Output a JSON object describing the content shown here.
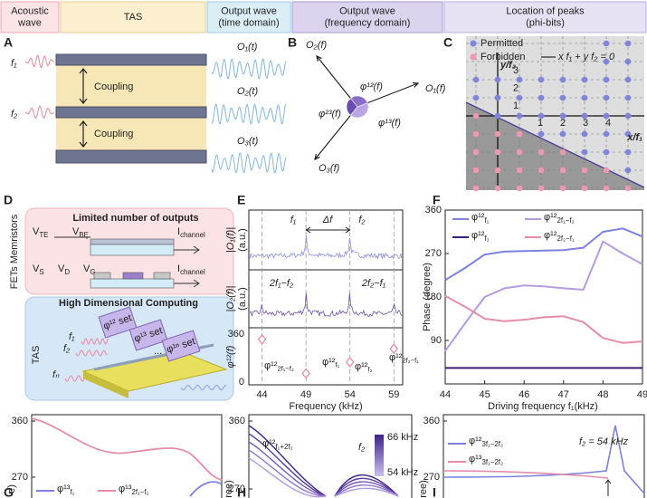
{
  "header": {
    "cells": [
      [
        "Acoustic",
        "wave"
      ],
      [
        "TAS"
      ],
      [
        "Output wave",
        "(time domain)"
      ],
      [
        "Output wave",
        "(frequency domain)"
      ],
      [
        "Location of peaks",
        "(phi-bits)"
      ]
    ]
  },
  "panels": {
    "A": {
      "label": "A",
      "inputs": [
        "f₁",
        "f₂"
      ],
      "coupling": [
        "Coupling",
        "Coupling"
      ],
      "outputs": [
        "O₁(t)",
        "O₂(t)",
        "O₃(t)"
      ]
    },
    "B": {
      "label": "B",
      "axes": [
        "O₂(f)",
        "O₁(f)",
        "O₃(f)"
      ],
      "phases": [
        "φ¹²(f)",
        "φ²³(f)",
        "φ¹³(f)"
      ]
    },
    "C": {
      "label": "C",
      "legend": [
        "Permitted",
        "Forbidden",
        "x f₁ + y f₂ = 0"
      ],
      "x_axis": "x/f₁",
      "y_axis": "y/f₂",
      "x_ticks": [
        "1",
        "2",
        "3",
        "4"
      ],
      "y_ticks": [
        "1",
        "2",
        "3"
      ]
    },
    "D": {
      "label": "D",
      "side_label": "FETs Memristors",
      "top_title": "Limited number of outputs",
      "row1": [
        {
          "base": "V",
          "sub": "TE"
        },
        {
          "base": "V",
          "sub": "BE"
        },
        {
          "base": "I",
          "sub": "channel"
        }
      ],
      "row2": [
        {
          "base": "V",
          "sub": "S"
        },
        {
          "base": "V",
          "sub": "D"
        },
        {
          "base": "V",
          "sub": "G"
        },
        {
          "base": "I",
          "sub": "channel"
        }
      ],
      "bottom_title": "High Dimensional Computing",
      "tas": "TAS",
      "inputs": [
        "f₁",
        "f₂",
        "fₙ"
      ],
      "sets": [
        "φ¹² set",
        "φ¹³ set",
        "φ¹ⁿ set"
      ],
      "dots": "..."
    },
    "E": {
      "label": "E",
      "top_labels": [
        "f₁",
        "Δf",
        "f₂"
      ],
      "mid_labels": [
        "2f₁−f₂",
        "2f₂−f₁"
      ],
      "ylabels": [
        "|O₁(f)|",
        "|O₂(f)|",
        "φ¹²(f)"
      ],
      "units": [
        "(a.u.)",
        "(a.u.)"
      ],
      "xlim": [
        42.5,
        60
      ],
      "xticks": [
        44,
        49,
        54,
        59
      ],
      "phase_ticks": [
        0,
        360
      ],
      "xlabel": "Frequency (kHz)",
      "markers": [
        {
          "x": 44,
          "value": 320,
          "label": {
            "base": "φ¹²",
            "sub": "2f₁−f₂"
          }
        },
        {
          "x": 49,
          "value": 65,
          "label": {
            "base": "φ¹²",
            "sub": "f₁"
          }
        },
        {
          "x": 54,
          "value": 150,
          "label": {
            "base": "φ¹²",
            "sub": "f₂"
          }
        },
        {
          "x": 59,
          "value": 250,
          "label": {
            "base": "φ¹²",
            "sub": "2f₂−f₁"
          }
        }
      ]
    },
    "G": {
      "label": "G",
      "yticks": [
        270,
        360
      ],
      "legend": [
        {
          "base": "φ¹³",
          "sub": "f₁"
        },
        {
          "base": "φ¹³",
          "sub": "2f₁−f₂"
        }
      ],
      "ylabel": "e)"
    },
    "H": {
      "label": "H",
      "yticks": [
        270,
        360
      ],
      "legend": [
        {
          "base": "φ¹²",
          "sub": "f₁+2f₂"
        }
      ],
      "colorbar": [
        "66 kHz",
        "54 kHz"
      ],
      "colorbar_title": "f₂",
      "ylabel": "ree)"
    },
    "I": {
      "label": "I",
      "yticks": [
        270,
        360
      ],
      "legend": [
        {
          "base": "φ¹²",
          "sub": "3f₁−2f₂"
        },
        {
          "base": "φ¹³",
          "sub": "3f₁−2f₂"
        }
      ],
      "note": "f₂ = 54 kHz",
      "ylabel": "ree)"
    }
  },
  "chart_data": {
    "type": "line",
    "panel_label": "F",
    "xlabel": "Driving frequency f₁(kHz)",
    "ylabel": "Phase (degree)",
    "x": [
      44,
      44.5,
      45,
      45.5,
      46,
      46.5,
      47,
      47.5,
      48,
      48.5,
      49
    ],
    "series": [
      {
        "name": {
          "base": "φ¹²",
          "sub": "f₁"
        },
        "color": "#7b82e0",
        "values": [
          215,
          240,
          268,
          274,
          275,
          276,
          277,
          282,
          315,
          322,
          305
        ]
      },
      {
        "name": {
          "base": "φ¹²",
          "sub": "2f₁−f₂"
        },
        "color": "#b89ae0",
        "values": [
          68,
          125,
          180,
          198,
          204,
          202,
          198,
          195,
          295,
          270,
          248
        ]
      },
      {
        "name": {
          "base": "φ¹²",
          "sub": "f₂"
        },
        "color": "#3c1f78",
        "values": [
          33,
          33,
          33,
          33,
          33,
          33,
          33,
          33,
          33,
          33,
          33
        ]
      },
      {
        "name": {
          "base": "φ¹²",
          "sub": "2f₂−f₁"
        },
        "color": "#e58cab",
        "values": [
          182,
          160,
          135,
          130,
          133,
          138,
          140,
          128,
          95,
          85,
          88
        ]
      }
    ],
    "xlim": [
      44,
      49
    ],
    "ylim": [
      0,
      360
    ],
    "xticks": [
      44,
      45,
      46,
      47,
      48,
      49
    ],
    "yticks": [
      90,
      180,
      270,
      360
    ],
    "legend_location": "upper"
  }
}
